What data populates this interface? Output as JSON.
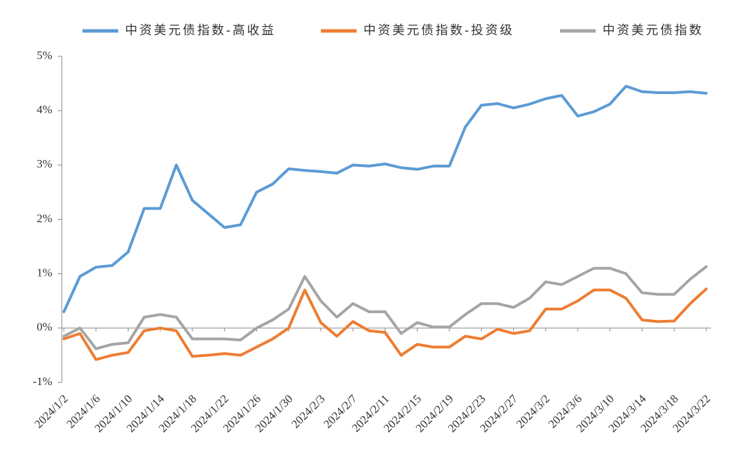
{
  "chart_data": {
    "type": "line",
    "categories": [
      "2024/1/2",
      null,
      "2024/1/6",
      null,
      "2024/1/10",
      null,
      "2024/1/14",
      null,
      "2024/1/18",
      null,
      "2024/1/22",
      null,
      "2024/1/26",
      null,
      "2024/1/30",
      null,
      "2024/2/3",
      null,
      "2024/2/7",
      null,
      "2024/2/11",
      null,
      "2024/2/15",
      null,
      "2024/2/19",
      null,
      "2024/2/23",
      null,
      "2024/2/27",
      null,
      "2024/3/2",
      null,
      "2024/3/6",
      null,
      "2024/3/10",
      null,
      "2024/3/14",
      null,
      "2024/3/18",
      null,
      "2024/3/22"
    ],
    "series": [
      {
        "name": "中资美元债指数-高收益",
        "color": "#5b9bd5",
        "values": [
          0.3,
          0.95,
          1.12,
          1.15,
          1.4,
          2.2,
          2.2,
          3.0,
          2.35,
          2.1,
          1.85,
          1.9,
          2.5,
          2.65,
          2.93,
          2.9,
          2.88,
          2.85,
          3.0,
          2.98,
          3.02,
          2.95,
          2.92,
          2.98,
          2.98,
          3.7,
          4.1,
          4.13,
          4.05,
          4.12,
          4.22,
          4.28,
          3.9,
          3.98,
          4.12,
          4.45,
          4.35,
          4.33,
          4.33,
          4.35,
          4.32
        ]
      },
      {
        "name": "中资美元债指数-投资级",
        "color": "#ed7d31",
        "values": [
          -0.2,
          -0.1,
          -0.58,
          -0.5,
          -0.45,
          -0.05,
          0.0,
          -0.05,
          -0.52,
          -0.5,
          -0.47,
          -0.5,
          -0.35,
          -0.2,
          0.0,
          0.7,
          0.1,
          -0.15,
          0.12,
          -0.05,
          -0.08,
          -0.5,
          -0.3,
          -0.35,
          -0.35,
          -0.15,
          -0.2,
          -0.02,
          -0.1,
          -0.05,
          0.35,
          0.35,
          0.5,
          0.7,
          0.7,
          0.55,
          0.15,
          0.12,
          0.13,
          0.45,
          0.72
        ]
      },
      {
        "name": "中资美元债指数",
        "color": "#a5a5a5",
        "values": [
          -0.15,
          0.0,
          -0.38,
          -0.3,
          -0.27,
          0.2,
          0.25,
          0.2,
          -0.2,
          -0.2,
          -0.2,
          -0.22,
          0.0,
          0.15,
          0.35,
          0.95,
          0.5,
          0.2,
          0.45,
          0.3,
          0.3,
          -0.1,
          0.1,
          0.02,
          0.02,
          0.25,
          0.45,
          0.45,
          0.38,
          0.55,
          0.85,
          0.8,
          0.95,
          1.1,
          1.1,
          1.0,
          0.65,
          0.62,
          0.62,
          0.9,
          1.13
        ]
      }
    ],
    "ylim": [
      -1,
      5
    ],
    "yticks": [
      {
        "value": -1,
        "label": "-1%"
      },
      {
        "value": 0,
        "label": "0%"
      },
      {
        "value": 1,
        "label": "1%"
      },
      {
        "value": 2,
        "label": "2%"
      },
      {
        "value": 3,
        "label": "3%"
      },
      {
        "value": 4,
        "label": "4%"
      },
      {
        "value": 5,
        "label": "5%"
      }
    ],
    "legend": "top"
  }
}
